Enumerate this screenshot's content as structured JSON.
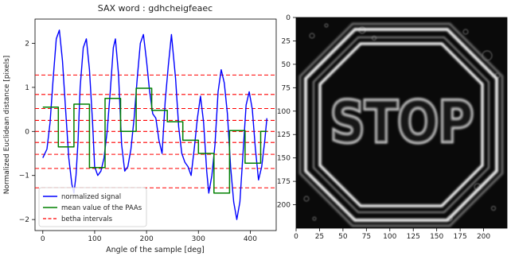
{
  "chart_data": [
    {
      "type": "line",
      "title": "SAX word : gdhcheigfeaec",
      "xlabel": "Angle of the sample [deg]",
      "ylabel": "Normalized Euclidean distance [pixels]",
      "xlim": [
        -15,
        450
      ],
      "ylim": [
        -2.25,
        2.55
      ],
      "x_ticks": [
        0,
        100,
        200,
        300,
        400
      ],
      "y_ticks": [
        2,
        1,
        0,
        -1,
        -2
      ],
      "grid": false,
      "legend_position": "lower-left",
      "series": [
        {
          "name": "normalized signal",
          "color": "#0000ff",
          "x": [
            0,
            8,
            14,
            20,
            26,
            32,
            38,
            44,
            50,
            56,
            60,
            64,
            68,
            72,
            78,
            84,
            90,
            96,
            100,
            106,
            112,
            118,
            124,
            130,
            136,
            140,
            146,
            152,
            158,
            164,
            170,
            176,
            182,
            188,
            194,
            200,
            206,
            212,
            218,
            224,
            230,
            236,
            242,
            248,
            256,
            262,
            268,
            274,
            280,
            286,
            292,
            298,
            304,
            310,
            316,
            320,
            326,
            332,
            338,
            344,
            350,
            356,
            362,
            368,
            374,
            380,
            386,
            392,
            398,
            404,
            410,
            416,
            422,
            428,
            432
          ],
          "y": [
            -0.6,
            -0.4,
            0.2,
            1.2,
            2.1,
            2.3,
            1.6,
            0.5,
            -0.6,
            -1.2,
            -1.4,
            -1.0,
            -0.2,
            1.0,
            1.9,
            2.1,
            1.4,
            0.2,
            -0.8,
            -1.0,
            -0.9,
            -0.6,
            0.0,
            0.9,
            1.9,
            2.1,
            1.3,
            -0.3,
            -0.9,
            -0.8,
            -0.4,
            0.3,
            1.2,
            2.0,
            2.2,
            1.6,
            0.9,
            0.4,
            0.3,
            -0.2,
            -0.5,
            0.7,
            1.5,
            2.2,
            1.2,
            0.1,
            -0.5,
            -0.7,
            -0.8,
            -1.0,
            -0.4,
            0.3,
            0.8,
            0.2,
            -0.9,
            -1.4,
            -1.0,
            -0.3,
            0.9,
            1.4,
            1.1,
            0.4,
            -0.8,
            -1.6,
            -2.0,
            -1.6,
            -0.5,
            0.6,
            0.9,
            0.5,
            -0.4,
            -1.1,
            -0.8,
            -0.2,
            0.3
          ]
        },
        {
          "name": "mean value of the PAAs",
          "color": "#008000",
          "step": true,
          "x": [
            0,
            30,
            60,
            90,
            120,
            150,
            180,
            210,
            240,
            270,
            300,
            330,
            360,
            390,
            420,
            432
          ],
          "y": [
            0.55,
            -0.35,
            0.62,
            -0.82,
            0.75,
            0.0,
            0.98,
            0.48,
            0.22,
            -0.2,
            -0.5,
            -1.4,
            0.02,
            -0.72,
            0.0,
            0.0
          ]
        }
      ],
      "reference_lines": {
        "name": "betha intervals",
        "color": "#ff0000",
        "style": "dashed",
        "y": [
          1.28,
          0.84,
          0.52,
          0.25,
          0.0,
          -0.25,
          -0.52,
          -0.84,
          -1.28
        ]
      }
    },
    {
      "type": "image",
      "xlim": [
        0,
        225
      ],
      "ylim": [
        225,
        0
      ],
      "x_ticks": [
        0,
        25,
        50,
        75,
        100,
        125,
        150,
        175,
        200
      ],
      "y_ticks": [
        0,
        25,
        50,
        75,
        100,
        125,
        150,
        175,
        200
      ],
      "image_text": "STOP",
      "image_text_color": "#d9d9d9",
      "image_background": "#0a0a0a"
    }
  ]
}
